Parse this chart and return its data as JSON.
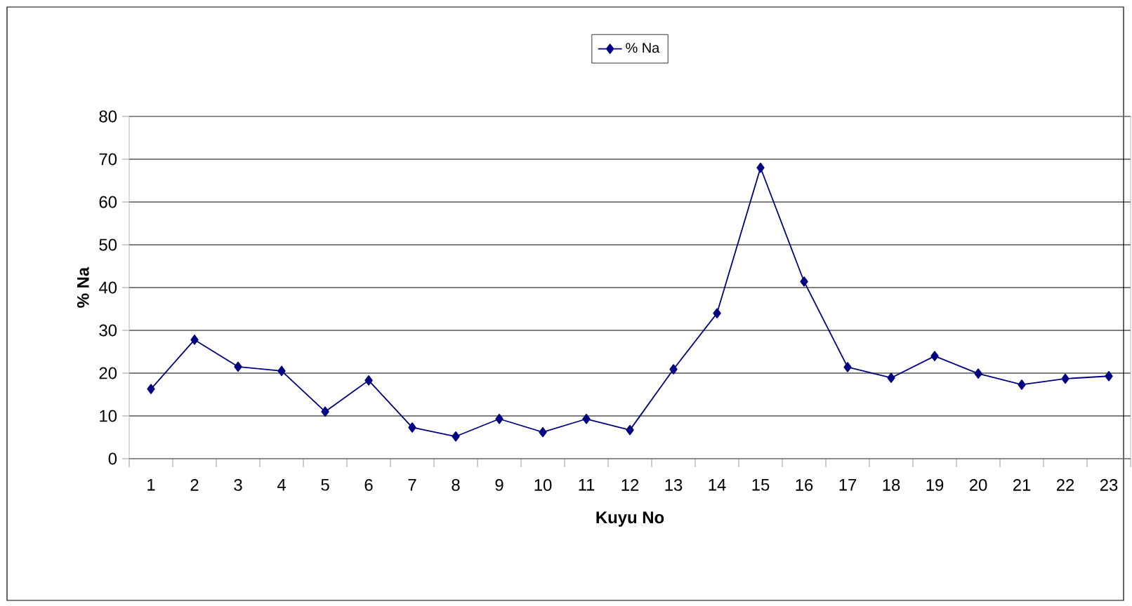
{
  "chart_data": {
    "type": "line",
    "xlabel": "Kuyu No",
    "ylabel": "% Na",
    "categories": [
      "1",
      "2",
      "3",
      "4",
      "5",
      "6",
      "7",
      "8",
      "9",
      "10",
      "11",
      "12",
      "13",
      "14",
      "15",
      "16",
      "17",
      "18",
      "19",
      "20",
      "21",
      "22",
      "23"
    ],
    "series": [
      {
        "name": "% Na",
        "color": "#000080",
        "values": [
          16.3,
          27.8,
          21.5,
          20.5,
          11,
          18.3,
          7.3,
          5.2,
          9.3,
          6.2,
          9.3,
          6.7,
          20.9,
          34,
          68,
          41.4,
          21.4,
          18.9,
          24,
          19.9,
          17.3,
          18.7,
          19.3
        ]
      }
    ],
    "ylim": [
      0,
      80
    ],
    "yticks": [
      0,
      10,
      20,
      30,
      40,
      50,
      60,
      70,
      80
    ],
    "grid": "y",
    "legend": "top",
    "marker": "diamond",
    "line_style": "solid"
  }
}
